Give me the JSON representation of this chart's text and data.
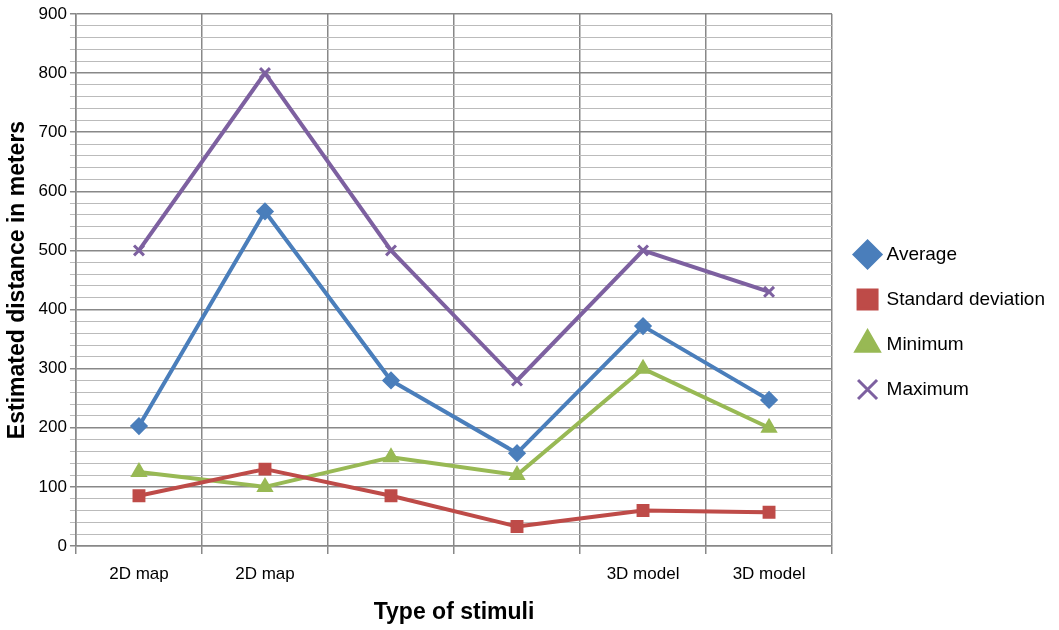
{
  "chart_data": {
    "type": "line",
    "xlabel": "Type of stimuli",
    "ylabel": "Estimated distance in meters",
    "categories": [
      "2D map",
      "2D map",
      null,
      null,
      "3D model",
      "3D model"
    ],
    "series": [
      {
        "name": "Average",
        "color": "#4a7ebb",
        "marker": "diamond",
        "values": [
          203,
          566,
          280,
          157,
          372,
          247
        ]
      },
      {
        "name": "Standard deviation",
        "color": "#be4b48",
        "marker": "square",
        "values": [
          85,
          130,
          85,
          33,
          60,
          57
        ]
      },
      {
        "name": "Minimum",
        "color": "#98b954",
        "marker": "triangle",
        "values": [
          125,
          100,
          150,
          120,
          300,
          200
        ]
      },
      {
        "name": "Maximum",
        "color": "#7d60a0",
        "marker": "cross",
        "values": [
          500,
          800,
          500,
          280,
          500,
          430
        ]
      }
    ],
    "ylim": [
      0,
      900
    ],
    "yticks": [
      0,
      {
        "value": 20,
        "label": null
      },
      {
        "value": 40,
        "label": null
      },
      {
        "value": 60,
        "label": null
      },
      {
        "value": 80,
        "label": null
      },
      100,
      {
        "value": 120,
        "label": null
      },
      {
        "value": 140,
        "label": null
      },
      {
        "value": 160,
        "label": null
      },
      {
        "value": 180,
        "label": null
      },
      200,
      {
        "value": 220,
        "label": null
      },
      {
        "value": 240,
        "label": null
      },
      {
        "value": 260,
        "label": null
      },
      {
        "value": 280,
        "label": null
      },
      300,
      {
        "value": 320,
        "label": null
      },
      {
        "value": 340,
        "label": null
      },
      {
        "value": 360,
        "label": null
      },
      {
        "value": 380,
        "label": null
      },
      400,
      {
        "value": 420,
        "label": null
      },
      {
        "value": 440,
        "label": null
      },
      {
        "value": 460,
        "label": null
      },
      {
        "value": 480,
        "label": null
      },
      500,
      {
        "value": 520,
        "label": null
      },
      {
        "value": 540,
        "label": null
      },
      {
        "value": 560,
        "label": null
      },
      {
        "value": 580,
        "label": null
      },
      600,
      {
        "value": 620,
        "label": null
      },
      {
        "value": 640,
        "label": null
      },
      {
        "value": 660,
        "label": null
      },
      {
        "value": 680,
        "label": null
      },
      700,
      {
        "value": 720,
        "label": null
      },
      {
        "value": 740,
        "label": null
      },
      {
        "value": 760,
        "label": null
      },
      {
        "value": 780,
        "label": null
      },
      800,
      {
        "value": 820,
        "label": null
      },
      {
        "value": 840,
        "label": null
      },
      {
        "value": 860,
        "label": null
      },
      {
        "value": 880,
        "label": null
      },
      900
    ],
    "grid": true,
    "legend": "right",
    "line_style": "solid"
  }
}
